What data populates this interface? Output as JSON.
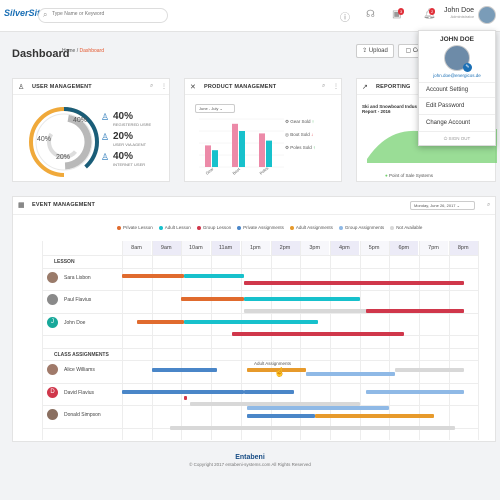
{
  "colors": {
    "orange": "#e06b2e",
    "teal": "#17c1cc",
    "red": "#d0374b",
    "blue": "#4a86c8",
    "amber": "#e79a2b",
    "lightblue": "#8fb9e6",
    "grey": "#d8d8d8",
    "green": "#6fcf6a",
    "accent": "#e4572e"
  },
  "topbar": {
    "logo": "SilverSite",
    "search_placeholder": "Type Name or Keyword",
    "icons": [
      "info-icon",
      "headset-icon",
      "alerts-icon",
      "bell-icon"
    ],
    "badge_alerts": "3",
    "badge_bell": "2",
    "user_name": "John Doe",
    "user_role": "Administrator"
  },
  "page": {
    "title": "Dashboard",
    "crumb_home": "Home",
    "crumb_sep": "/",
    "crumb_current": "Dashboard",
    "upload_label": "Upload",
    "co_label": "Co"
  },
  "user_mgmt": {
    "title": "USER MANAGEMENT",
    "donut_labels": [
      "40%",
      "40%",
      "20%"
    ],
    "stats": [
      {
        "pct": "40%",
        "label": "REGISTERED USRE"
      },
      {
        "pct": "20%",
        "label": "USER VIA AGENT"
      },
      {
        "pct": "40%",
        "label": "INTERNET USER"
      }
    ]
  },
  "product_mgmt": {
    "title": "PRODUCT MANAGEMENT",
    "period": "June - July",
    "legend": [
      "Gear Sold",
      "Boot Sold",
      "Poles Sold"
    ],
    "chart_data": {
      "type": "bar",
      "categories": [
        "Gear",
        "Boot",
        "Poles"
      ],
      "series": [
        {
          "name": "pink",
          "values": [
            45,
            90,
            70
          ]
        },
        {
          "name": "teal",
          "values": [
            35,
            75,
            55
          ]
        }
      ],
      "ylim": [
        0,
        100
      ]
    }
  },
  "reporting": {
    "title": "REPORTING",
    "subtitle": "Ski and Snowboard Indus Report - 2016",
    "legend": "Point of Sale Systems"
  },
  "event_mgmt": {
    "title": "EVENT MANAGEMENT",
    "date": "Monday, June 26, 2017",
    "legend": [
      "Private Lesson",
      "Adult Lesson",
      "Group Lesson",
      "Private Assignments",
      "Adult Assignments",
      "Group Assignments",
      "Not Available"
    ],
    "times": [
      "8am",
      "9am",
      "10am",
      "11am",
      "1pm",
      "2pm",
      "3pm",
      "4pm",
      "5pm",
      "6pm",
      "7pm",
      "8pm"
    ],
    "lesson_header": "LESSON",
    "assign_header": "CLASS ASSIGNMENTS",
    "lesson_people": [
      "Sara Lisbon",
      "Paul Flavius",
      "John Doe"
    ],
    "assign_people": [
      "Alice Williams",
      "David Flavius",
      "Donald Simpson"
    ],
    "tooltip": "Adult Assignments"
  },
  "footer": {
    "brand": "Entabeni",
    "copyright": "© Copyright 2017 entabeni-systems.com All Rights Reserved"
  },
  "menu": {
    "name": "JOHN DOE",
    "email": "john.doe@energicos.de",
    "items": [
      "Account Setting",
      "Edit Password",
      "Change Account"
    ],
    "signout": "SIGN OUT"
  }
}
